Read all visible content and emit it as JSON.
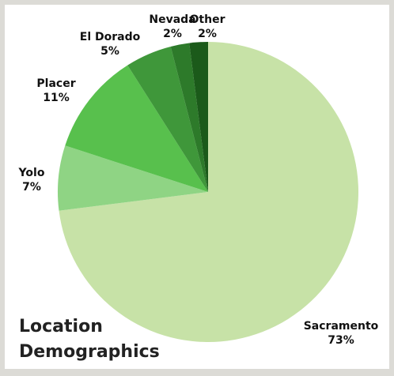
{
  "chart_data": {
    "type": "pie",
    "title_lines": [
      "Location",
      "Demographics"
    ],
    "start_angle_deg": 0,
    "direction": "clockwise",
    "slices": [
      {
        "label": "Sacramento",
        "value": 73,
        "value_label": "73%",
        "color": "#c7e2a7"
      },
      {
        "label": "Yolo",
        "value": 7,
        "value_label": "7%",
        "color": "#8fd484"
      },
      {
        "label": "Placer",
        "value": 11,
        "value_label": "11%",
        "color": "#58c04d"
      },
      {
        "label": "El Dorado",
        "value": 5,
        "value_label": "5%",
        "color": "#3f973a"
      },
      {
        "label": "Nevada",
        "value": 2,
        "value_label": "2%",
        "color": "#2d7a2a"
      },
      {
        "label": "Other",
        "value": 2,
        "value_label": "2%",
        "color": "#1b5a1a"
      }
    ]
  }
}
